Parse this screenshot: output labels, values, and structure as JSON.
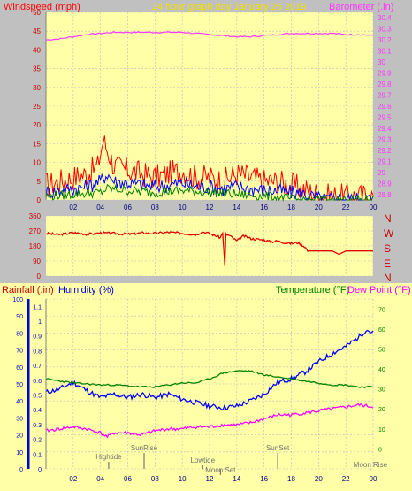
{
  "header": {
    "wind_label": "Windspeed (mph)",
    "title": "24 hour graph day   January 26 2019",
    "baro_label": "Barometer (.in)"
  },
  "bottom_header": {
    "rain_label": "Rainfall (.in)",
    "humidity_label": "Humidity (%)",
    "temp_label": "Temperature (°F)",
    "dew_label": "Dew Point (°F)"
  },
  "compass": [
    "N",
    "W",
    "S",
    "E",
    "N"
  ],
  "events": [
    {
      "label": "Hightide",
      "hour": 4.6
    },
    {
      "label": "SunRise",
      "hour": 7.2
    },
    {
      "label": "Lowtide",
      "hour": 11.5
    },
    {
      "label": "Moon Set",
      "hour": 12.8
    },
    {
      "label": "SunSet",
      "hour": 17.0
    },
    {
      "label": "Moon Rise",
      "hour": 23.8
    }
  ],
  "colors": {
    "plot_bg": "#ffffa8",
    "frame_bg": "#c0c0c0",
    "wind_gust": "#ff0000",
    "wind_avg": "#0000ff",
    "wind_low": "#008000",
    "barometer": "#ff33ff",
    "direction": "#e00000",
    "humidity": "#0000ff",
    "temperature": "#008000",
    "dewpoint": "#ff00ff",
    "rain_axis": "#0000cc"
  },
  "chart_data": [
    {
      "type": "line",
      "name": "wind-barometer",
      "x_ticks": [
        "02",
        "04",
        "06",
        "08",
        "10",
        "12",
        "14",
        "16",
        "18",
        "20",
        "22",
        "00"
      ],
      "x_tick_hours": [
        2,
        4,
        6,
        8,
        10,
        12,
        14,
        16,
        18,
        20,
        22,
        24
      ],
      "y_left_ticks": [
        0,
        5,
        10,
        15,
        20,
        25,
        30,
        35,
        40,
        45,
        50
      ],
      "y_left_range": [
        0,
        50
      ],
      "y_right_ticks": [
        "28.8",
        "28.9",
        "29",
        "29.1",
        "29.2",
        "29.3",
        "29.4",
        "29.5",
        "29.6",
        "29.7",
        "29.8",
        "29.9",
        "30",
        "30.1",
        "30.2",
        "30.3",
        "30.4"
      ],
      "y_right_range": [
        28.75,
        30.45
      ],
      "series": [
        {
          "name": "Windspeed gust",
          "hours": [
            0,
            1,
            2,
            3,
            3.8,
            4.2,
            5,
            6,
            7,
            8,
            9,
            10,
            11,
            12,
            13,
            14,
            15,
            16,
            17,
            18,
            18.8,
            19.5,
            20.5,
            22,
            23,
            24
          ],
          "values": [
            4,
            5,
            6,
            7,
            9,
            16,
            9,
            8,
            7,
            6,
            7,
            8,
            6,
            6,
            5,
            7,
            6,
            5,
            5,
            4,
            3,
            2,
            1,
            1,
            1,
            1
          ]
        },
        {
          "name": "Windspeed average",
          "hours": [
            0,
            1,
            2,
            3,
            4,
            4.5,
            5,
            6,
            7,
            8,
            9,
            10,
            11,
            12,
            13,
            14,
            15,
            16,
            17,
            18,
            19,
            19.8,
            21,
            24
          ],
          "values": [
            2,
            2.5,
            3,
            3.5,
            5,
            7,
            5,
            4.5,
            4,
            3.5,
            4,
            4.5,
            3.5,
            3.5,
            3,
            3.5,
            3,
            2.5,
            2.5,
            2,
            1.5,
            0.5,
            0.2,
            0.2
          ]
        },
        {
          "name": "Windspeed low",
          "hours": [
            0,
            2,
            4,
            4.5,
            6,
            8,
            10,
            12,
            14,
            16,
            17.5,
            18.5,
            24
          ],
          "values": [
            1,
            1.5,
            2,
            3,
            2.5,
            2,
            2.5,
            2,
            1.5,
            1,
            0.5,
            0,
            0
          ]
        },
        {
          "name": "Barometer",
          "hours": [
            0,
            1,
            2,
            3,
            4,
            5,
            6,
            7,
            8,
            9,
            10,
            11,
            12,
            13,
            14,
            15,
            16,
            17,
            18,
            19,
            20,
            21,
            22,
            23,
            24
          ],
          "values": [
            30.2,
            30.21,
            30.23,
            30.25,
            30.26,
            30.27,
            30.27,
            30.27,
            30.27,
            30.27,
            30.27,
            30.26,
            30.25,
            30.24,
            30.23,
            30.23,
            30.24,
            30.25,
            30.26,
            30.26,
            30.26,
            30.26,
            30.25,
            30.25,
            30.24
          ]
        }
      ]
    },
    {
      "type": "line",
      "name": "wind-direction",
      "y_ticks": [
        0,
        90,
        180,
        270,
        360
      ],
      "y_range": [
        0,
        360
      ],
      "series": [
        {
          "name": "Wind direction",
          "hours": [
            0,
            1,
            2,
            3,
            4,
            5,
            6,
            7,
            8,
            9,
            10,
            11,
            11.5,
            12,
            12.8,
            13,
            13.1,
            13.2,
            13.5,
            14,
            14.5,
            15,
            16,
            16.5,
            17,
            17.5,
            18,
            18.5,
            19,
            19.2,
            20,
            21,
            21.5,
            22,
            23,
            24
          ],
          "values": [
            255,
            248,
            260,
            250,
            258,
            255,
            250,
            258,
            255,
            262,
            256,
            248,
            265,
            255,
            230,
            270,
            10,
            250,
            240,
            210,
            240,
            225,
            215,
            205,
            210,
            200,
            195,
            200,
            175,
            150,
            150,
            150,
            130,
            150,
            150,
            150
          ]
        }
      ]
    },
    {
      "type": "line",
      "name": "humidity-temperature",
      "y_left_rain_ticks": [
        "0",
        "0.1",
        "0.2",
        "0.3",
        "0.4",
        "0.5",
        "0.6",
        "0.7",
        "0.8",
        "0.9",
        "1",
        "1.1"
      ],
      "y_left_rain_range": [
        0,
        1.15
      ],
      "y_left_hum_ticks": [
        0,
        10,
        20,
        30,
        40,
        50,
        60,
        70,
        80,
        90,
        100
      ],
      "y_left_hum_range": [
        0,
        100
      ],
      "y_right_ticks": [
        0,
        10,
        20,
        30,
        40,
        50,
        60,
        70
      ],
      "y_right_range": [
        -10,
        75
      ],
      "series": [
        {
          "name": "Humidity",
          "hours": [
            0,
            1,
            2,
            3,
            4,
            5,
            6,
            7,
            8,
            9,
            10,
            11,
            12,
            13,
            14,
            15,
            16,
            17,
            18,
            19,
            20,
            21,
            22,
            23,
            23.5,
            24
          ],
          "values": [
            45,
            47,
            51,
            46,
            42,
            44,
            42,
            44,
            42,
            44,
            41,
            39,
            37,
            36,
            37,
            40,
            44,
            51,
            53,
            57,
            63,
            68,
            72,
            78,
            82,
            80
          ]
        },
        {
          "name": "Temperature",
          "hours": [
            0,
            1,
            2,
            3,
            4,
            5,
            6,
            7,
            8,
            9,
            10,
            11,
            12,
            13,
            14,
            15,
            16,
            17,
            18,
            19,
            20,
            21,
            22,
            23,
            24
          ],
          "values": [
            35,
            34,
            33,
            32.5,
            32,
            32,
            31.5,
            31,
            31,
            32,
            33,
            33,
            35,
            38,
            39,
            39,
            37,
            36,
            35,
            34,
            33,
            32,
            32,
            31,
            31
          ]
        },
        {
          "name": "Dew Point",
          "hours": [
            0,
            1,
            2,
            3,
            4,
            4.5,
            5,
            6,
            7,
            8,
            9,
            10,
            11,
            12,
            13,
            14,
            15,
            16,
            17,
            18,
            19,
            20,
            21,
            22,
            23,
            24
          ],
          "values": [
            9,
            10,
            11,
            10,
            8,
            6,
            8,
            8,
            7,
            9,
            10,
            10,
            11,
            11,
            12,
            12,
            13,
            15,
            17,
            17,
            18,
            19,
            20,
            21,
            22,
            21
          ]
        }
      ]
    }
  ]
}
